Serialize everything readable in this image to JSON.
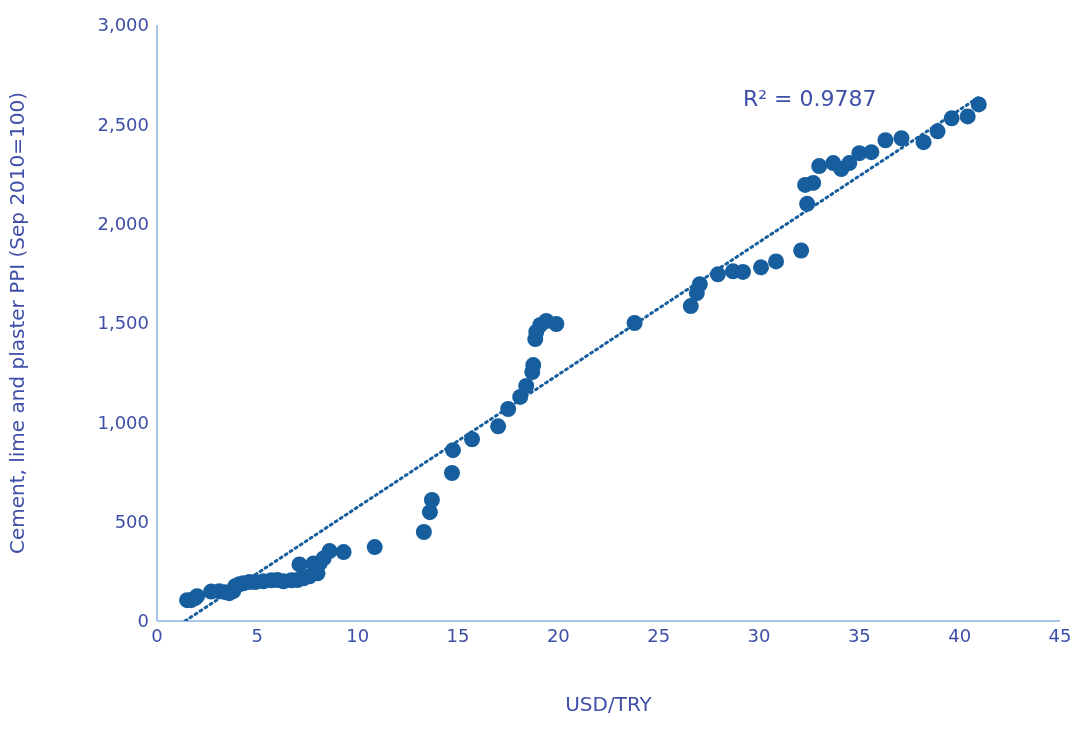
{
  "chart_data": {
    "type": "scatter",
    "xlabel": "USD/TRY",
    "ylabel": "Cement, lime and plaster PPI (Sep 2010=100)",
    "xlim": [
      0,
      45
    ],
    "xticks": [
      0,
      5,
      10,
      15,
      20,
      25,
      30,
      35,
      40,
      45
    ],
    "ylim": [
      0,
      3000
    ],
    "yticks": [
      {
        "value": 0,
        "label": "0"
      },
      {
        "value": 500,
        "label": "500"
      },
      {
        "value": 1000,
        "label": "1,000"
      },
      {
        "value": 1500,
        "label": "1,500"
      },
      {
        "value": 2000,
        "label": "2,000"
      },
      {
        "value": 2500,
        "label": "2,500"
      },
      {
        "value": 3000,
        "label": "3,000"
      }
    ],
    "annotations": [
      "R² = 0.9787"
    ],
    "series": [
      {
        "marker": "circle",
        "color": "#175e9e",
        "x": [
          1.5,
          1.7,
          1.9,
          2.0,
          2.7,
          3.1,
          3.4,
          3.6,
          3.8,
          3.9,
          4.1,
          4.3,
          4.6,
          4.9,
          5.3,
          5.7,
          6.0,
          6.3,
          6.7,
          7.0,
          7.1,
          7.3,
          7.6,
          7.8,
          8.0,
          8.1,
          8.3,
          8.6,
          9.3,
          10.85,
          13.3,
          13.6,
          13.7,
          14.7,
          14.75,
          15.7,
          17.0,
          17.5,
          18.1,
          18.4,
          18.7,
          18.75,
          18.85,
          18.9,
          19.1,
          19.4,
          19.9,
          23.8,
          26.6,
          26.9,
          27.05,
          27.95,
          28.7,
          29.2,
          30.1,
          30.85,
          32.1,
          32.4,
          32.3,
          32.7,
          33.0,
          33.7,
          34.1,
          34.5,
          35.0,
          35.6,
          36.3,
          37.1,
          38.2,
          38.9,
          39.6,
          40.4,
          40.95
        ],
        "values": [
          105,
          105,
          115,
          125,
          148,
          150,
          145,
          140,
          150,
          175,
          185,
          190,
          196,
          196,
          200,
          205,
          206,
          200,
          205,
          206,
          285,
          215,
          225,
          290,
          240,
          290,
          315,
          352,
          347,
          372,
          448,
          548,
          609,
          745,
          860,
          915,
          980,
          1067,
          1128,
          1183,
          1253,
          1288,
          1419,
          1455,
          1490,
          1510,
          1495,
          1500,
          1585,
          1650,
          1695,
          1745,
          1760,
          1757,
          1780,
          1810,
          1865,
          2100,
          2195,
          2205,
          2290,
          2305,
          2275,
          2305,
          2355,
          2360,
          2420,
          2430,
          2410,
          2465,
          2530,
          2540,
          2600
        ]
      },
      {
        "type": "line",
        "color": "#175e9e",
        "line_style": "dotted",
        "x": [
          1.4,
          41
        ],
        "values": [
          0,
          2640
        ]
      }
    ]
  }
}
